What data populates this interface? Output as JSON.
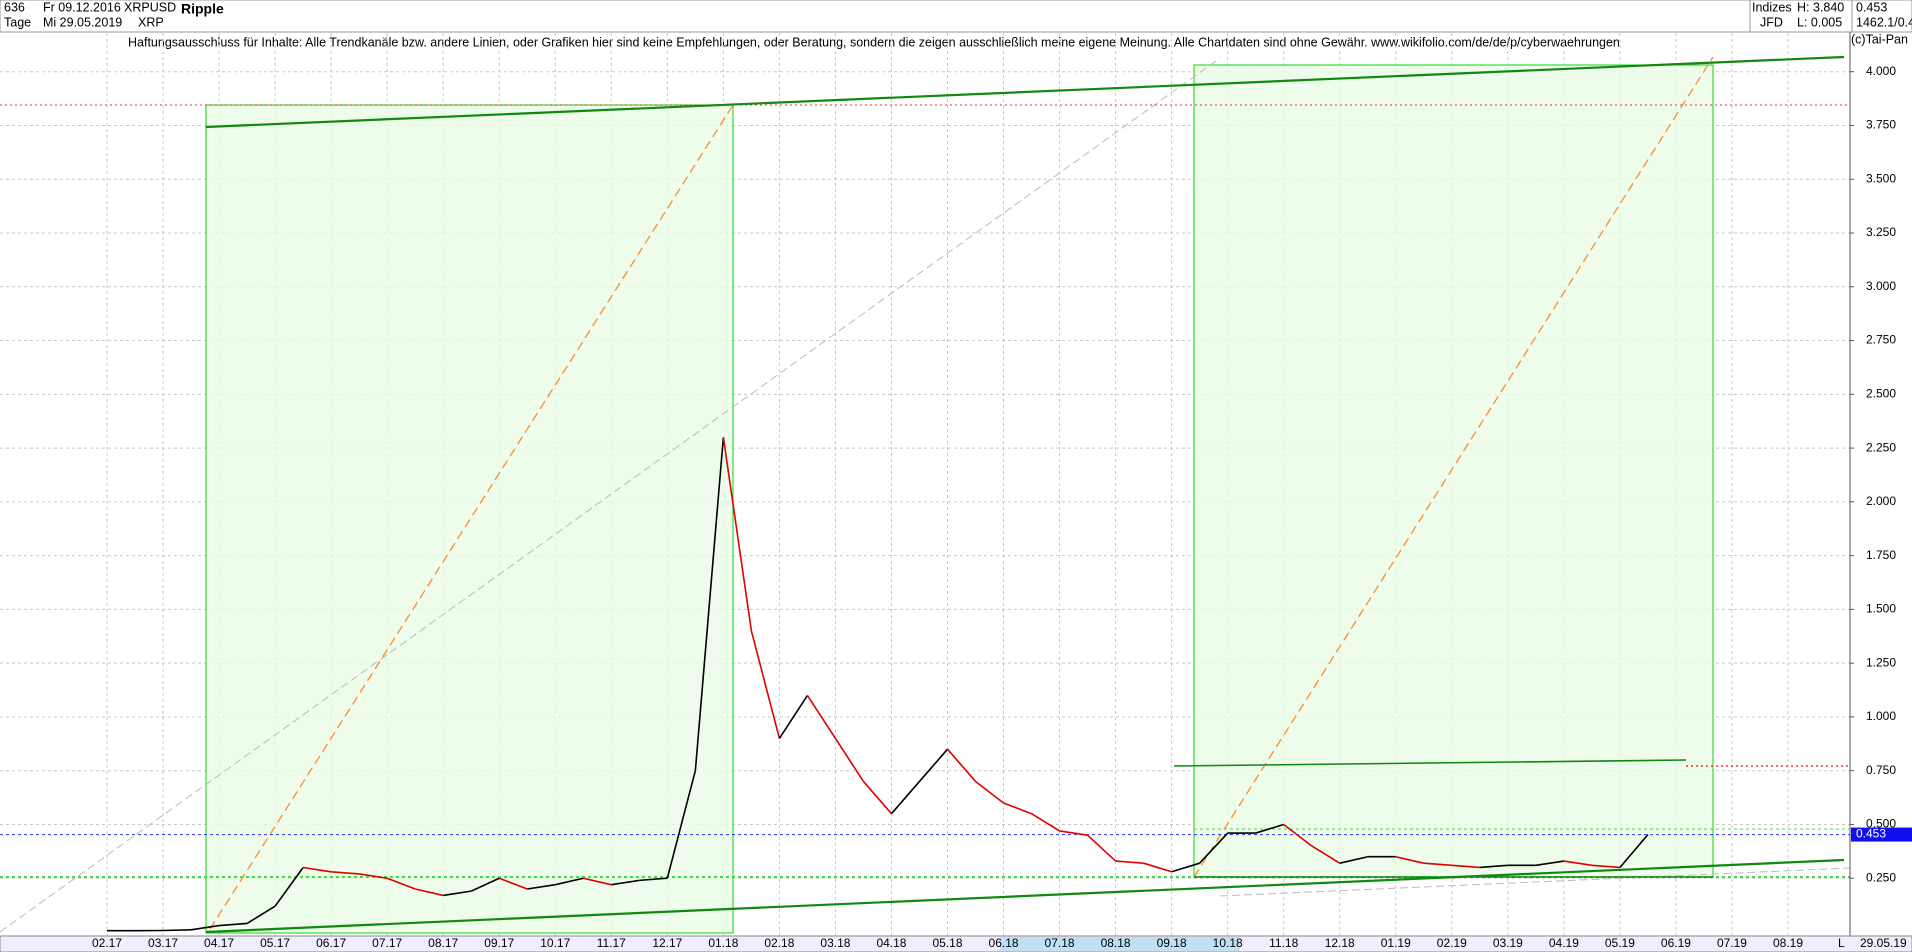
{
  "chart_data": {
    "type": "line",
    "title": "Ripple",
    "header": {
      "count": "636",
      "period": "Tage",
      "start_date": "Fr 09.12.2016",
      "end_date": "Mi 29.05.2019",
      "symbol": "XRPUSD",
      "currency": "XRP",
      "group": "Indizes",
      "broker": "JFD",
      "high": "H: 3.840",
      "low": "L: 0.005",
      "last": "0.453",
      "info": "1462.1/0.4"
    },
    "annotation": "Haftungsausschluss für Inhalte: Alle Trendkanäle bzw. andere Linien, oder Grafiken hier sind keine Empfehlungen, oder Beratung, sondern die zeigen ausschließlich meine eigene Meinung. Alle Chartdaten sind ohne Gewähr.  www.wikifolio.com/de/de/p/cyberwaehrungen",
    "copyright": "(c)Tai-Pan",
    "last_date": "29.05.19",
    "scale_mode": "L",
    "last_price": 0.453,
    "categories": [
      "02.17",
      null,
      "03.17",
      null,
      "04.17",
      null,
      "05.17",
      null,
      "06.17",
      null,
      "07.17",
      null,
      "08.17",
      null,
      "09.17",
      null,
      "10.17",
      null,
      "11.17",
      null,
      "12.17",
      null,
      "01.18",
      null,
      "02.18",
      null,
      "03.18",
      null,
      "04.18",
      null,
      "05.18",
      null,
      "06.18",
      null,
      "07.18",
      null,
      "08.18",
      null,
      "09.18",
      null,
      "10.18",
      null,
      "11.18",
      null,
      "12.18",
      null,
      "01.19",
      null,
      "02.19",
      null,
      "03.19",
      null,
      "04.19",
      null,
      "05.19",
      null,
      "06.19",
      null,
      "07.19",
      null,
      "08.19"
    ],
    "series": [
      {
        "name": "XRPUSD",
        "color": "#000000",
        "down_color": "#e00000",
        "values": [
          0.006,
          0.006,
          0.007,
          0.01,
          0.03,
          0.04,
          0.12,
          0.3,
          0.28,
          0.27,
          0.25,
          0.2,
          0.17,
          0.19,
          0.25,
          0.2,
          0.22,
          0.25,
          0.22,
          0.24,
          0.25,
          0.75,
          2.3,
          1.4,
          0.9,
          1.1,
          0.9,
          0.7,
          0.55,
          0.7,
          0.85,
          0.7,
          0.6,
          0.55,
          0.47,
          0.45,
          0.33,
          0.32,
          0.28,
          0.32,
          0.46,
          0.46,
          0.5,
          0.4,
          0.32,
          0.35,
          0.35,
          0.32,
          0.31,
          0.3,
          0.31,
          0.31,
          0.33,
          0.31,
          0.3,
          0.453,
          null,
          null,
          null,
          null,
          null
        ]
      }
    ],
    "ylim": [
      0,
      4.18
    ],
    "yticks": [
      {
        "value": 0.25,
        "label": "0.250"
      },
      {
        "value": 0.5,
        "label": "0.500"
      },
      {
        "value": 0.75,
        "label": "0.750"
      },
      {
        "value": 1,
        "label": "1.000"
      },
      {
        "value": 1.25,
        "label": "1.250"
      },
      {
        "value": 1.5,
        "label": "1.500"
      },
      {
        "value": 1.75,
        "label": "1.750"
      },
      {
        "value": 2,
        "label": "2.000"
      },
      {
        "value": 2.25,
        "label": "2.250"
      },
      {
        "value": 2.5,
        "label": "2.500"
      },
      {
        "value": 2.75,
        "label": "2.750"
      },
      {
        "value": 3,
        "label": "3.000"
      },
      {
        "value": 3.25,
        "label": "3.250"
      },
      {
        "value": 3.5,
        "label": "3.500"
      },
      {
        "value": 3.75,
        "label": "3.750"
      },
      {
        "value": 4,
        "label": "4.000"
      }
    ],
    "grid": true
  }
}
